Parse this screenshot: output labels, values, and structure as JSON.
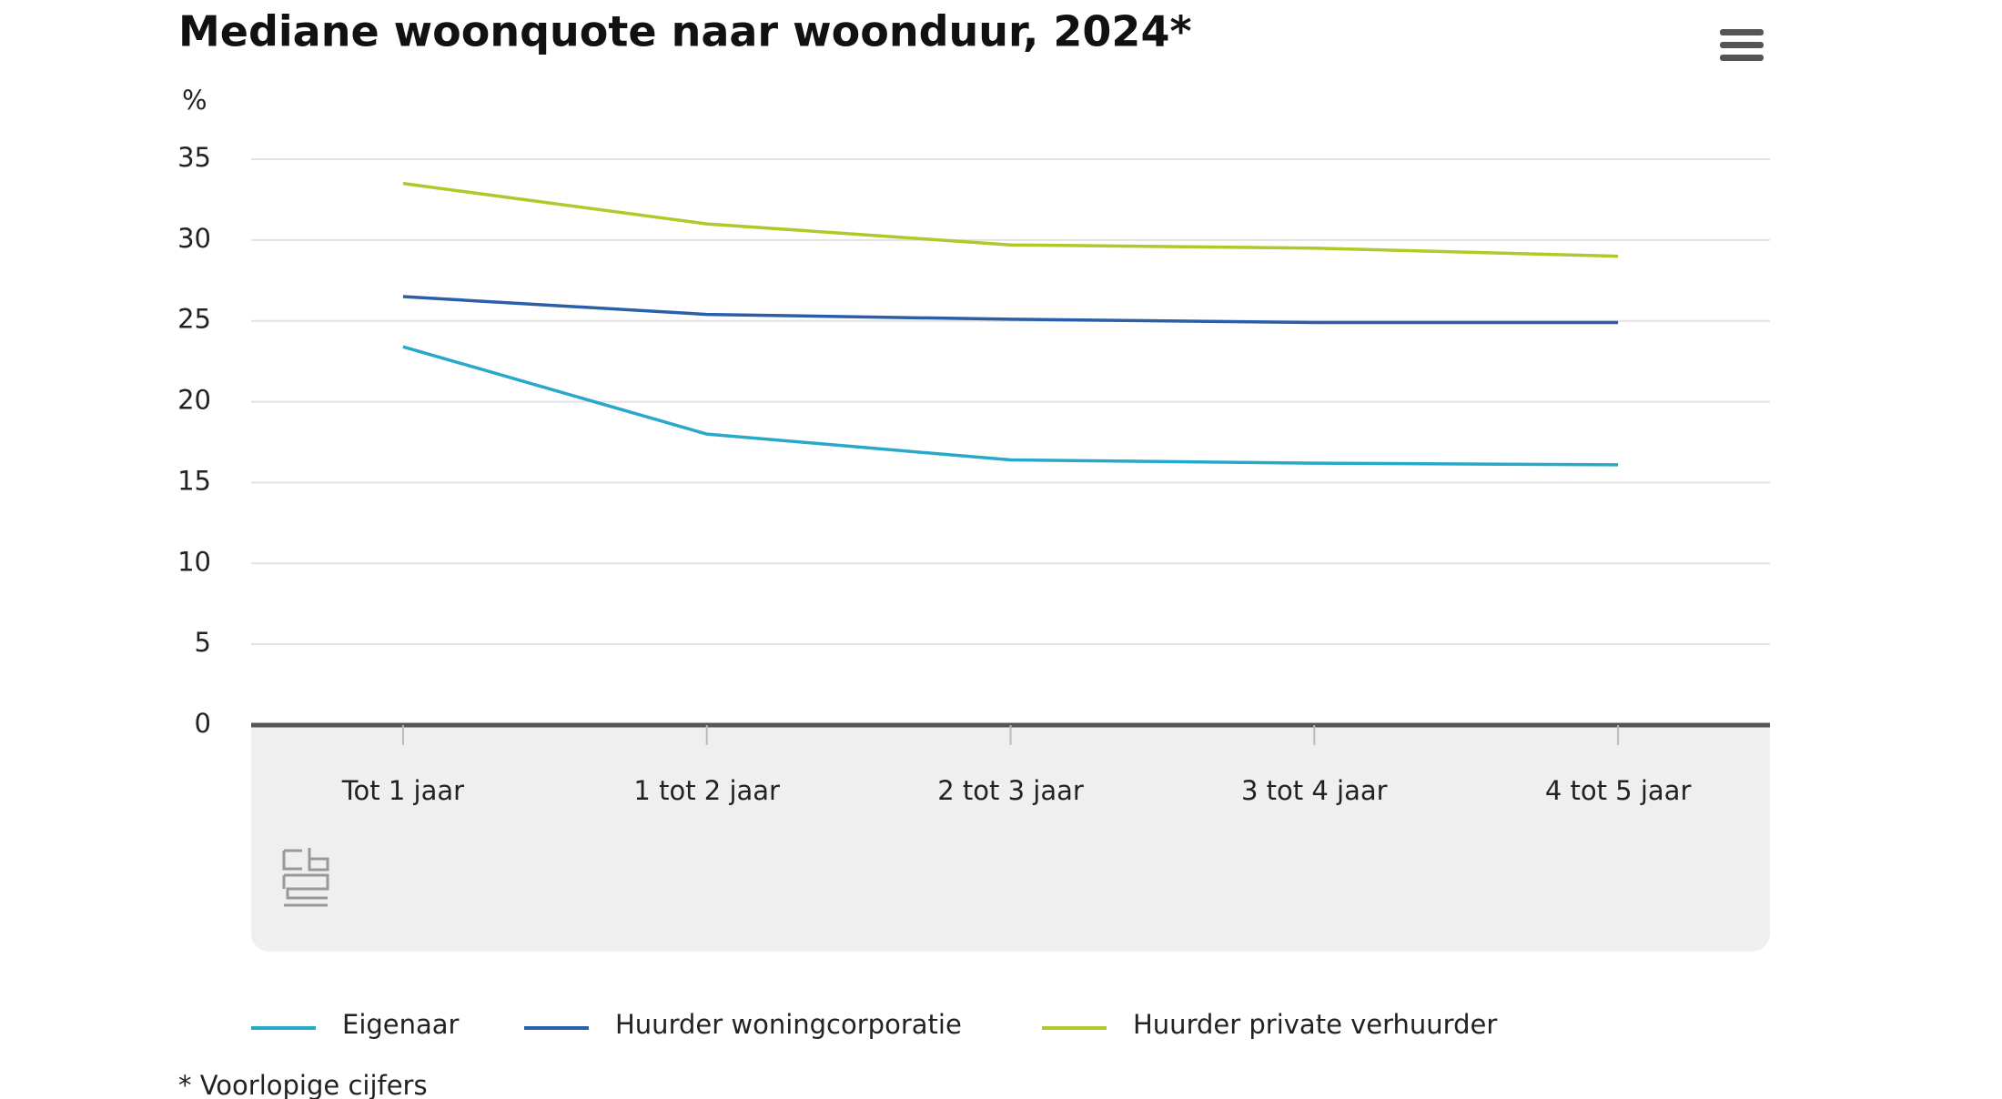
{
  "chart_data": {
    "type": "line",
    "title": "Mediane woonquote naar woonduur, 2024*",
    "y_label": "%",
    "categories": [
      "Tot 1 jaar",
      "1 tot 2 jaar",
      "2 tot 3 jaar",
      "3 tot 4 jaar",
      "4 tot 5 jaar"
    ],
    "series": [
      {
        "name": "Eigenaar",
        "color": "#29a9c9",
        "values": [
          23.4,
          18.0,
          16.4,
          16.2,
          16.1
        ]
      },
      {
        "name": "Huurder woningcorporatie",
        "color": "#2a5fa8",
        "values": [
          26.5,
          25.4,
          25.1,
          24.9,
          24.9
        ]
      },
      {
        "name": "Huurder private verhuurder",
        "color": "#aec92a",
        "values": [
          33.5,
          31.0,
          29.7,
          29.5,
          29.0
        ]
      }
    ],
    "ylim": [
      0,
      35
    ],
    "yticks": [
      0,
      5,
      10,
      15,
      20,
      25,
      30,
      35
    ],
    "grid": true,
    "footnote": "* Voorlopige cijfers"
  }
}
